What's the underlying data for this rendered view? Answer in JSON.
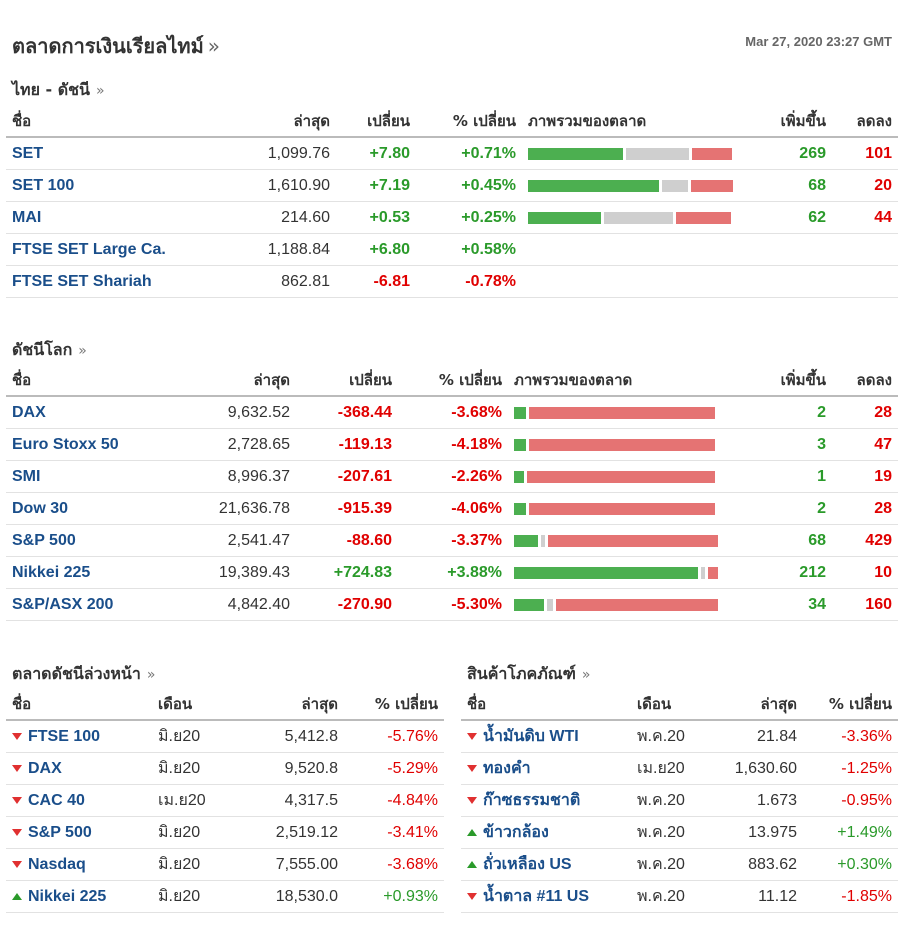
{
  "header": {
    "title": "ตลาดการเงินเรียลไทม์",
    "title_arrow": "»",
    "timestamp": "Mar 27, 2020 23:27 GMT"
  },
  "thai": {
    "title": "ไทย - ดัชนี",
    "arrow": "»",
    "columns": [
      "ชื่อ",
      "ล่าสุด",
      "เปลี่ยน",
      "% เปลี่ยน",
      "ภาพรวมของตลาด",
      "เพิ่มขึ้น",
      "ลดลง"
    ],
    "rows": [
      {
        "name": "SET",
        "last": "1,099.76",
        "chg": "+7.80",
        "pct": "+0.71%",
        "dir": "up",
        "adv": "269",
        "dec": "101",
        "bar": [
          0.48,
          0.32,
          0.2
        ]
      },
      {
        "name": "SET 100",
        "last": "1,610.90",
        "chg": "+7.19",
        "pct": "+0.45%",
        "dir": "up",
        "adv": "68",
        "dec": "20",
        "bar": [
          0.66,
          0.13,
          0.21
        ]
      },
      {
        "name": "MAI",
        "last": "214.60",
        "chg": "+0.53",
        "pct": "+0.25%",
        "dir": "up",
        "adv": "62",
        "dec": "44",
        "bar": [
          0.37,
          0.35,
          0.28
        ]
      },
      {
        "name": "FTSE SET Large Ca.",
        "last": "1,188.84",
        "chg": "+6.80",
        "pct": "+0.58%",
        "dir": "up",
        "adv": "",
        "dec": "",
        "bar": null
      },
      {
        "name": "FTSE SET Shariah",
        "last": "862.81",
        "chg": "-6.81",
        "pct": "-0.78%",
        "dir": "down",
        "adv": "",
        "dec": "",
        "bar": null
      }
    ]
  },
  "world": {
    "title": "ดัชนีโลก",
    "arrow": "»",
    "columns": [
      "ชื่อ",
      "ล่าสุด",
      "เปลี่ยน",
      "% เปลี่ยน",
      "ภาพรวมของตลาด",
      "เพิ่มขึ้น",
      "ลดลง"
    ],
    "rows": [
      {
        "name": "DAX",
        "last": "9,632.52",
        "chg": "-368.44",
        "pct": "-3.68%",
        "dir": "down",
        "adv": "2",
        "dec": "28",
        "bar": [
          0.06,
          0.0,
          0.94
        ]
      },
      {
        "name": "Euro Stoxx 50",
        "last": "2,728.65",
        "chg": "-119.13",
        "pct": "-4.18%",
        "dir": "down",
        "adv": "3",
        "dec": "47",
        "bar": [
          0.06,
          0.0,
          0.94
        ]
      },
      {
        "name": "SMI",
        "last": "8,996.37",
        "chg": "-207.61",
        "pct": "-2.26%",
        "dir": "down",
        "adv": "1",
        "dec": "19",
        "bar": [
          0.05,
          0.0,
          0.95
        ]
      },
      {
        "name": "Dow 30",
        "last": "21,636.78",
        "chg": "-915.39",
        "pct": "-4.06%",
        "dir": "down",
        "adv": "2",
        "dec": "28",
        "bar": [
          0.06,
          0.0,
          0.94
        ]
      },
      {
        "name": "S&P 500",
        "last": "2,541.47",
        "chg": "-88.60",
        "pct": "-3.37%",
        "dir": "down",
        "adv": "68",
        "dec": "429",
        "bar": [
          0.12,
          0.02,
          0.86
        ]
      },
      {
        "name": "Nikkei 225",
        "last": "19,389.43",
        "chg": "+724.83",
        "pct": "+3.88%",
        "dir": "up",
        "adv": "212",
        "dec": "10",
        "bar": [
          0.93,
          0.02,
          0.05
        ]
      },
      {
        "name": "S&P/ASX 200",
        "last": "4,842.40",
        "chg": "-270.90",
        "pct": "-5.30%",
        "dir": "down",
        "adv": "34",
        "dec": "160",
        "bar": [
          0.15,
          0.03,
          0.82
        ]
      }
    ]
  },
  "futures": {
    "title": "ตลาดดัชนีล่วงหน้า",
    "arrow": "»",
    "columns": [
      "ชื่อ",
      "เดือน",
      "ล่าสุด",
      "% เปลี่ยน"
    ],
    "rows": [
      {
        "name": "FTSE 100",
        "month": "มิ.ย20",
        "last": "5,412.8",
        "pct": "-5.76%",
        "dir": "down"
      },
      {
        "name": "DAX",
        "month": "มิ.ย20",
        "last": "9,520.8",
        "pct": "-5.29%",
        "dir": "down"
      },
      {
        "name": "CAC 40",
        "month": "เม.ย20",
        "last": "4,317.5",
        "pct": "-4.84%",
        "dir": "down"
      },
      {
        "name": "S&P 500",
        "month": "มิ.ย20",
        "last": "2,519.12",
        "pct": "-3.41%",
        "dir": "down"
      },
      {
        "name": "Nasdaq",
        "month": "มิ.ย20",
        "last": "7,555.00",
        "pct": "-3.68%",
        "dir": "down"
      },
      {
        "name": "Nikkei 225",
        "month": "มิ.ย20",
        "last": "18,530.0",
        "pct": "+0.93%",
        "dir": "up"
      }
    ]
  },
  "commodities": {
    "title": "สินค้าโภคภัณฑ์",
    "arrow": "»",
    "columns": [
      "ชื่อ",
      "เดือน",
      "ล่าสุด",
      "% เปลี่ยน"
    ],
    "rows": [
      {
        "name": "น้ำมันดิบ WTI",
        "month": "พ.ค.20",
        "last": "21.84",
        "pct": "-3.36%",
        "dir": "down"
      },
      {
        "name": "ทองคำ",
        "month": "เม.ย20",
        "last": "1,630.60",
        "pct": "-1.25%",
        "dir": "down"
      },
      {
        "name": "ก๊าซธรรมชาติ",
        "month": "พ.ค.20",
        "last": "1.673",
        "pct": "-0.95%",
        "dir": "down"
      },
      {
        "name": "ข้าวกล้อง",
        "month": "พ.ค.20",
        "last": "13.975",
        "pct": "+1.49%",
        "dir": "up"
      },
      {
        "name": "ถั่วเหลือง US",
        "month": "พ.ค.20",
        "last": "883.62",
        "pct": "+0.30%",
        "dir": "up"
      },
      {
        "name": "น้ำตาล #11 US",
        "month": "พ.ค.20",
        "last": "11.12",
        "pct": "-1.85%",
        "dir": "down"
      }
    ]
  }
}
